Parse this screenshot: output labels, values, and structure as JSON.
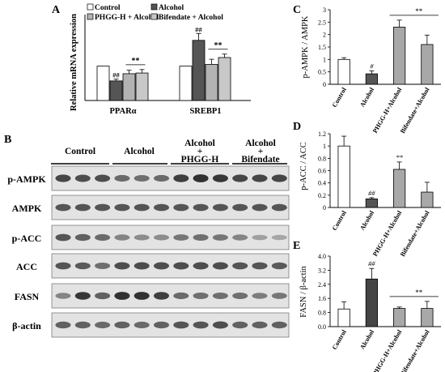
{
  "panel_letters": [
    "A",
    "B",
    "C",
    "D",
    "E"
  ],
  "colors": {
    "control": "#ffffff",
    "alcohol": "#555555",
    "phgg": "#b3b3b3",
    "bifendate": "#c8c8c8",
    "blot_bg": "#e3e3e3",
    "band": "#2a2a2a",
    "alcohol_ce": "#555555",
    "treat_ce": "#a8a8a8"
  },
  "blot": {
    "groups": [
      "Control",
      "Alcohol",
      "Alcohol\n+\nPHGG-H",
      "Alcohol\n+\nBifendate"
    ],
    "rows": [
      "p-AMPK",
      "AMPK",
      "p-ACC",
      "ACC",
      "FASN",
      "β-actin"
    ]
  },
  "chart_data": [
    {
      "id": "A",
      "type": "bar",
      "ylabel": "Relative mRNA expression",
      "ylim": [
        0,
        2.5
      ],
      "categories": [
        "PPARα",
        "SREBP1"
      ],
      "series": [
        {
          "name": "Control",
          "values": [
            1.0,
            1.0
          ],
          "errors": [
            0,
            0
          ]
        },
        {
          "name": "Alcohol",
          "values": [
            0.57,
            1.75
          ],
          "errors": [
            0.05,
            0.2
          ]
        },
        {
          "name": "PHGG-H + Alcohol",
          "values": [
            0.78,
            1.05
          ],
          "errors": [
            0.1,
            0.15
          ]
        },
        {
          "name": "Bifendate + Alcohol",
          "values": [
            0.8,
            1.25
          ],
          "errors": [
            0.1,
            0.1
          ]
        }
      ],
      "annotations": [
        {
          "text": "##",
          "category": 0,
          "series": 1
        },
        {
          "text": "**",
          "category": 0,
          "series": [
            2,
            3
          ]
        },
        {
          "text": "##",
          "category": 1,
          "series": 1
        },
        {
          "text": "**",
          "category": 1,
          "series": [
            2,
            3
          ]
        }
      ],
      "legend": "top-left"
    },
    {
      "id": "C",
      "type": "bar",
      "ylabel": "p-AMPK / AMPK",
      "ylim": [
        0,
        3
      ],
      "yticks": [
        "0",
        "0.5",
        "1",
        "1.5",
        "2",
        "2.5",
        "3"
      ],
      "categories": [
        "Control",
        "Alcohol",
        "PHGG-H+Alcohol",
        "Bifendate+Alcohol"
      ],
      "values": [
        1.0,
        0.42,
        2.3,
        1.6
      ],
      "errors": [
        0.07,
        0.12,
        0.28,
        0.38
      ],
      "annotations": [
        {
          "text": "#",
          "index": 1
        },
        {
          "text": "**",
          "span": [
            2,
            3
          ]
        }
      ]
    },
    {
      "id": "D",
      "type": "bar",
      "ylabel": "p-ACC / ACC",
      "ylim": [
        0,
        1.2
      ],
      "yticks": [
        "0",
        "0.2",
        "0.4",
        "0.6",
        "0.8",
        "1",
        "1.2"
      ],
      "categories": [
        "Control",
        "Alcohol",
        "PHGG-H+Alcohol",
        "Bifendate+Alcohol"
      ],
      "values": [
        1.0,
        0.14,
        0.62,
        0.25
      ],
      "errors": [
        0.16,
        0.02,
        0.12,
        0.16
      ],
      "annotations": [
        {
          "text": "##",
          "index": 1
        },
        {
          "text": "**",
          "index": 2
        }
      ]
    },
    {
      "id": "E",
      "type": "bar",
      "ylabel": "FASN / β-actin",
      "ylim": [
        0,
        4.0
      ],
      "yticks": [
        "0.0",
        "0.8",
        "1.6",
        "2.4",
        "3.2",
        "4.0"
      ],
      "categories": [
        "Control",
        "Alcohol",
        "PHGG-H+Alcohol",
        "Bifendate+Alcohol"
      ],
      "values": [
        1.0,
        2.7,
        1.03,
        1.03
      ],
      "errors": [
        0.4,
        0.6,
        0.08,
        0.4
      ],
      "annotations": [
        {
          "text": "##",
          "index": 1
        },
        {
          "text": "**",
          "span": [
            2,
            3
          ]
        }
      ]
    }
  ]
}
